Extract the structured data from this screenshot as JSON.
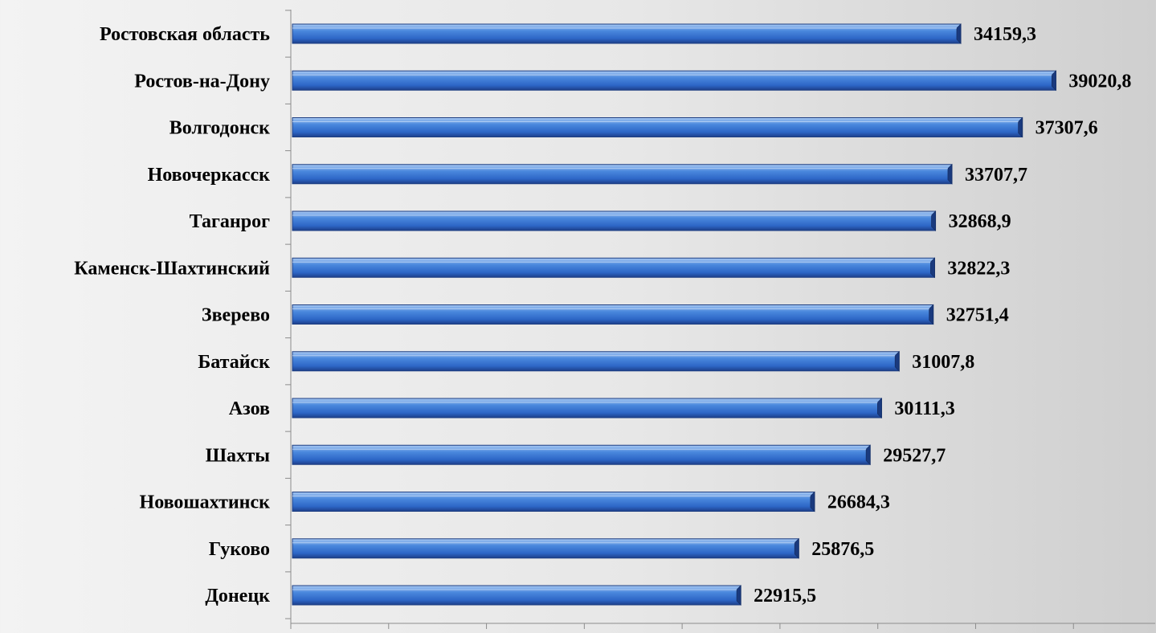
{
  "chart_data": {
    "type": "bar",
    "orientation": "horizontal",
    "categories": [
      "Ростовская область",
      "Ростов-на-Дону",
      "Волгодонск",
      "Новочеркасск",
      "Таганрог",
      "Каменск-Шахтинский",
      "Зверево",
      "Батайск",
      "Азов",
      "Шахты",
      "Новошахтинск",
      "Гуково",
      "Донецк"
    ],
    "values": [
      34159.3,
      39020.8,
      37307.6,
      33707.7,
      32868.9,
      32822.3,
      32751.4,
      31007.8,
      30111.3,
      29527.7,
      26684.3,
      25876.5,
      22915.5
    ],
    "value_labels": [
      "34159,3",
      "39020,8",
      "37307,6",
      "33707,7",
      "32868,9",
      "32822,3",
      "32751,4",
      "31007,8",
      "30111,3",
      "29527,7",
      "26684,3",
      "25876,5",
      "22915,5"
    ],
    "xlim": [
      0,
      45000
    ],
    "x_tick_step": 5000,
    "x_tick_labels_visible": false,
    "grid": false,
    "legend": "none",
    "bar_color": "#2f6fd0"
  }
}
